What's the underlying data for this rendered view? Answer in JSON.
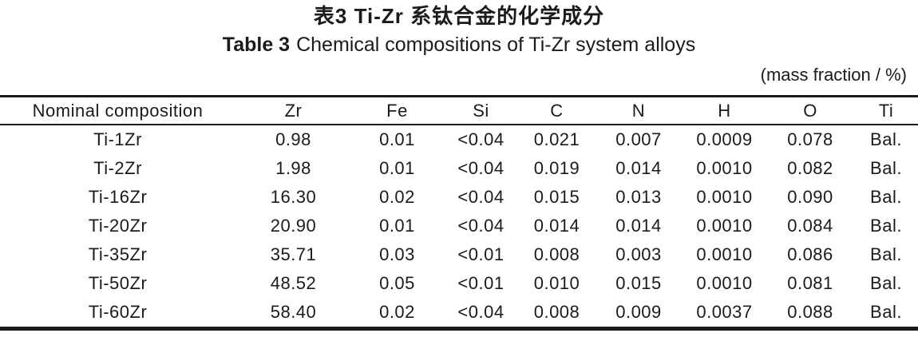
{
  "caption_cn": "表3  Ti-Zr 系钛合金的化学成分",
  "caption_en_label": "Table 3",
  "caption_en_text": "Chemical compositions of Ti-Zr system alloys",
  "unit_note": "(mass fraction / %)",
  "table": {
    "columns": [
      "Nominal composition",
      "Zr",
      "Fe",
      "Si",
      "C",
      "N",
      "H",
      "O",
      "Ti"
    ],
    "rows": [
      [
        "Ti-1Zr",
        "0.98",
        "0.01",
        "<0.04",
        "0.021",
        "0.007",
        "0.0009",
        "0.078",
        "Bal."
      ],
      [
        "Ti-2Zr",
        "1.98",
        "0.01",
        "<0.04",
        "0.019",
        "0.014",
        "0.0010",
        "0.082",
        "Bal."
      ],
      [
        "Ti-16Zr",
        "16.30",
        "0.02",
        "<0.04",
        "0.015",
        "0.013",
        "0.0010",
        "0.090",
        "Bal."
      ],
      [
        "Ti-20Zr",
        "20.90",
        "0.01",
        "<0.04",
        "0.014",
        "0.014",
        "0.0010",
        "0.084",
        "Bal."
      ],
      [
        "Ti-35Zr",
        "35.71",
        "0.03",
        "<0.01",
        "0.008",
        "0.003",
        "0.0010",
        "0.086",
        "Bal."
      ],
      [
        "Ti-50Zr",
        "48.52",
        "0.05",
        "<0.01",
        "0.010",
        "0.015",
        "0.0010",
        "0.081",
        "Bal."
      ],
      [
        "Ti-60Zr",
        "58.40",
        "0.02",
        "<0.04",
        "0.008",
        "0.009",
        "0.0037",
        "0.088",
        "Bal."
      ]
    ]
  },
  "colors": {
    "text": "#1b1b1b",
    "rule": "#1b1b1b",
    "background": "#ffffff"
  }
}
